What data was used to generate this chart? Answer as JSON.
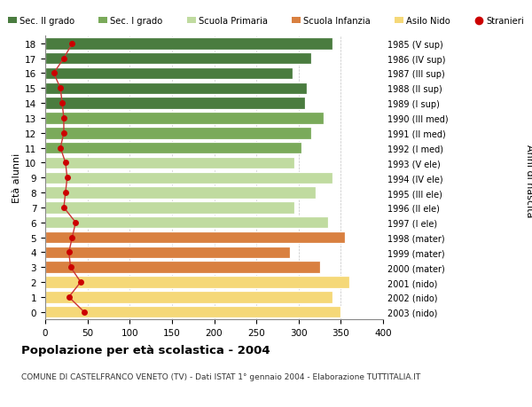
{
  "ages": [
    18,
    17,
    16,
    15,
    14,
    13,
    12,
    11,
    10,
    9,
    8,
    7,
    6,
    5,
    4,
    3,
    2,
    1,
    0
  ],
  "bar_values": [
    340,
    315,
    293,
    310,
    308,
    330,
    315,
    303,
    295,
    340,
    320,
    295,
    335,
    355,
    290,
    325,
    360,
    340,
    350
  ],
  "bar_colors": [
    "#4a7c3f",
    "#4a7c3f",
    "#4a7c3f",
    "#4a7c3f",
    "#4a7c3f",
    "#7aaa5a",
    "#7aaa5a",
    "#7aaa5a",
    "#c0dba0",
    "#c0dba0",
    "#c0dba0",
    "#c0dba0",
    "#c0dba0",
    "#d98040",
    "#d98040",
    "#d98040",
    "#f5d878",
    "#f5d878",
    "#f5d878"
  ],
  "stranieri": [
    32,
    22,
    10,
    18,
    20,
    22,
    22,
    18,
    24,
    26,
    24,
    22,
    36,
    32,
    28,
    30,
    42,
    28,
    46
  ],
  "right_labels": [
    "1985 (V sup)",
    "1986 (IV sup)",
    "1987 (III sup)",
    "1988 (II sup)",
    "1989 (I sup)",
    "1990 (III med)",
    "1991 (II med)",
    "1992 (I med)",
    "1993 (V ele)",
    "1994 (IV ele)",
    "1995 (III ele)",
    "1996 (II ele)",
    "1997 (I ele)",
    "1998 (mater)",
    "1999 (mater)",
    "2000 (mater)",
    "2001 (nido)",
    "2002 (nido)",
    "2003 (nido)"
  ],
  "legend_labels": [
    "Sec. II grado",
    "Sec. I grado",
    "Scuola Primaria",
    "Scuola Infanzia",
    "Asilo Nido",
    "Stranieri"
  ],
  "legend_colors": [
    "#4a7c3f",
    "#7aaa5a",
    "#c0dba0",
    "#d98040",
    "#f5d878",
    "#cc0000"
  ],
  "ylabel_left": "Età alunni",
  "ylabel_right": "Anni di nascita",
  "title": "Popolazione per età scolastica - 2004",
  "subtitle": "COMUNE DI CASTELFRANCO VENETO (TV) - Dati ISTAT 1° gennaio 2004 - Elaborazione TUTTITALIA.IT",
  "xlim": [
    0,
    400
  ],
  "xticks": [
    0,
    50,
    100,
    150,
    200,
    250,
    300,
    350,
    400
  ],
  "stranieri_color": "#cc0000",
  "stranieri_line_color": "#cc3333",
  "bg_color": "#ffffff"
}
